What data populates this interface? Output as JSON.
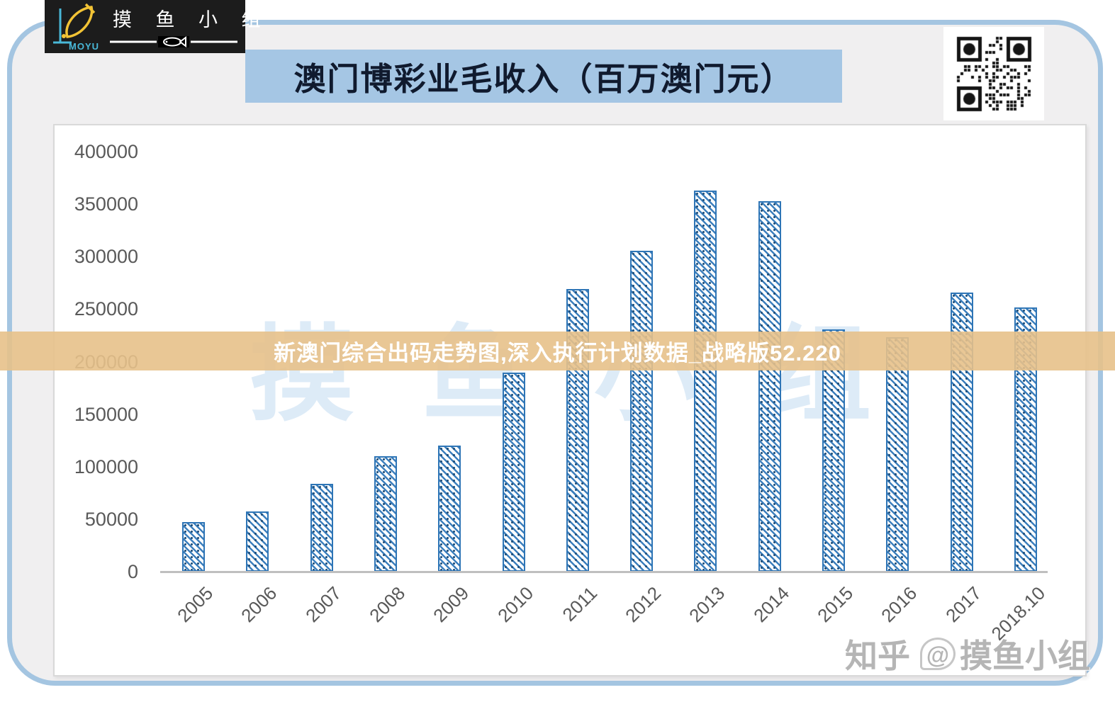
{
  "logo": {
    "brand": "MOYU",
    "title": "摸 鱼 小 组",
    "colors": {
      "bg": "#1c1c1c",
      "fish_yellow": "#f2c335",
      "cyan": "#49b8d8",
      "text": "#ffffff"
    }
  },
  "header": {
    "title": "澳门博彩业毛收入（百万澳门元）",
    "banner_bg": "#a5c6e4",
    "text_color": "#101a2e"
  },
  "overlay_banner": {
    "text": "新澳门综合出码走势图,深入执行计划数据_战略版52.220",
    "bg": "#e7c189",
    "text_color": "#ffffff"
  },
  "watermarks": {
    "center_text": "摸鱼小组",
    "zhihu_prefix": "知乎",
    "zhihu_at": "@",
    "zhihu_suffix": "摸鱼小组"
  },
  "chart_data": {
    "type": "bar",
    "title": "澳门博彩业毛收入（百万澳门元）",
    "categories": [
      "2005",
      "2006",
      "2007",
      "2008",
      "2009",
      "2010",
      "2011",
      "2012",
      "2013",
      "2014",
      "2015",
      "2016",
      "2017",
      "2018.10"
    ],
    "values": [
      47134,
      57521,
      83847,
      109826,
      120383,
      189588,
      269058,
      305235,
      362749,
      352714,
      230840,
      223211,
      265743,
      251429
    ],
    "xlabel": "",
    "ylabel": "",
    "ylim": [
      0,
      400000
    ],
    "yticks": [
      0,
      50000,
      100000,
      150000,
      200000,
      250000,
      300000,
      350000,
      400000
    ],
    "grid": false,
    "legend": false,
    "bar_border_color": "#2e75b6",
    "bar_fill": "white-with-blue-diagonal-hatch",
    "axis_text_color": "#595959"
  }
}
